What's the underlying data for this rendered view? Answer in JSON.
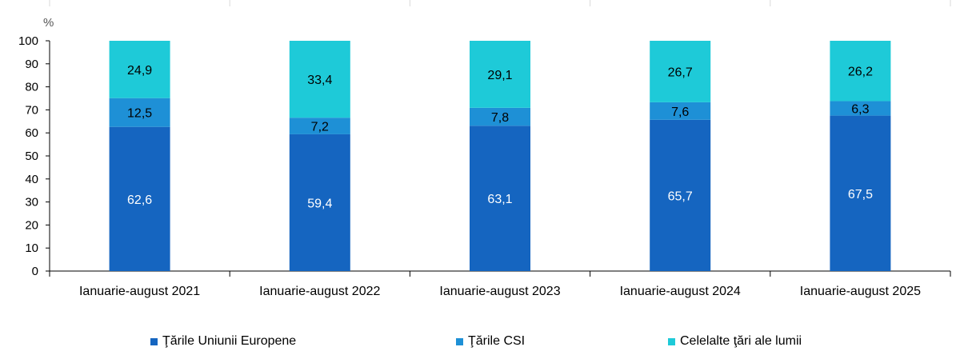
{
  "chart_data": {
    "type": "bar",
    "stacked": true,
    "unit_label": "%",
    "categories": [
      "Ianuarie-august 2021",
      "Ianuarie-august 2022",
      "Ianuarie-august 2023",
      "Ianuarie-august 2024",
      "Ianuarie-august 2025"
    ],
    "series": [
      {
        "name": "Ţările Uniunii Europene",
        "color": "#1565C0",
        "label_color": "#ffffff",
        "values": [
          62.6,
          59.4,
          63.1,
          65.7,
          67.5
        ],
        "labels": [
          "62,6",
          "59,4",
          "63,1",
          "65,7",
          "67,5"
        ]
      },
      {
        "name": "Ţările CSI",
        "color": "#1E90D6",
        "label_color": "#000000",
        "values": [
          12.5,
          7.2,
          7.8,
          7.6,
          6.3
        ],
        "labels": [
          "12,5",
          "7,2",
          "7,8",
          "7,6",
          "6,3"
        ]
      },
      {
        "name": "Celelalte ţări ale lumii",
        "color": "#1ECAD8",
        "label_color": "#000000",
        "values": [
          24.9,
          33.4,
          29.1,
          26.7,
          26.2
        ],
        "labels": [
          "24,9",
          "33,4",
          "29,1",
          "26,7",
          "26,2"
        ]
      }
    ],
    "ylim": [
      0,
      100
    ],
    "yticks": [
      0,
      10,
      20,
      30,
      40,
      50,
      60,
      70,
      80,
      90,
      100
    ],
    "grid": false,
    "legend_position": "bottom"
  }
}
